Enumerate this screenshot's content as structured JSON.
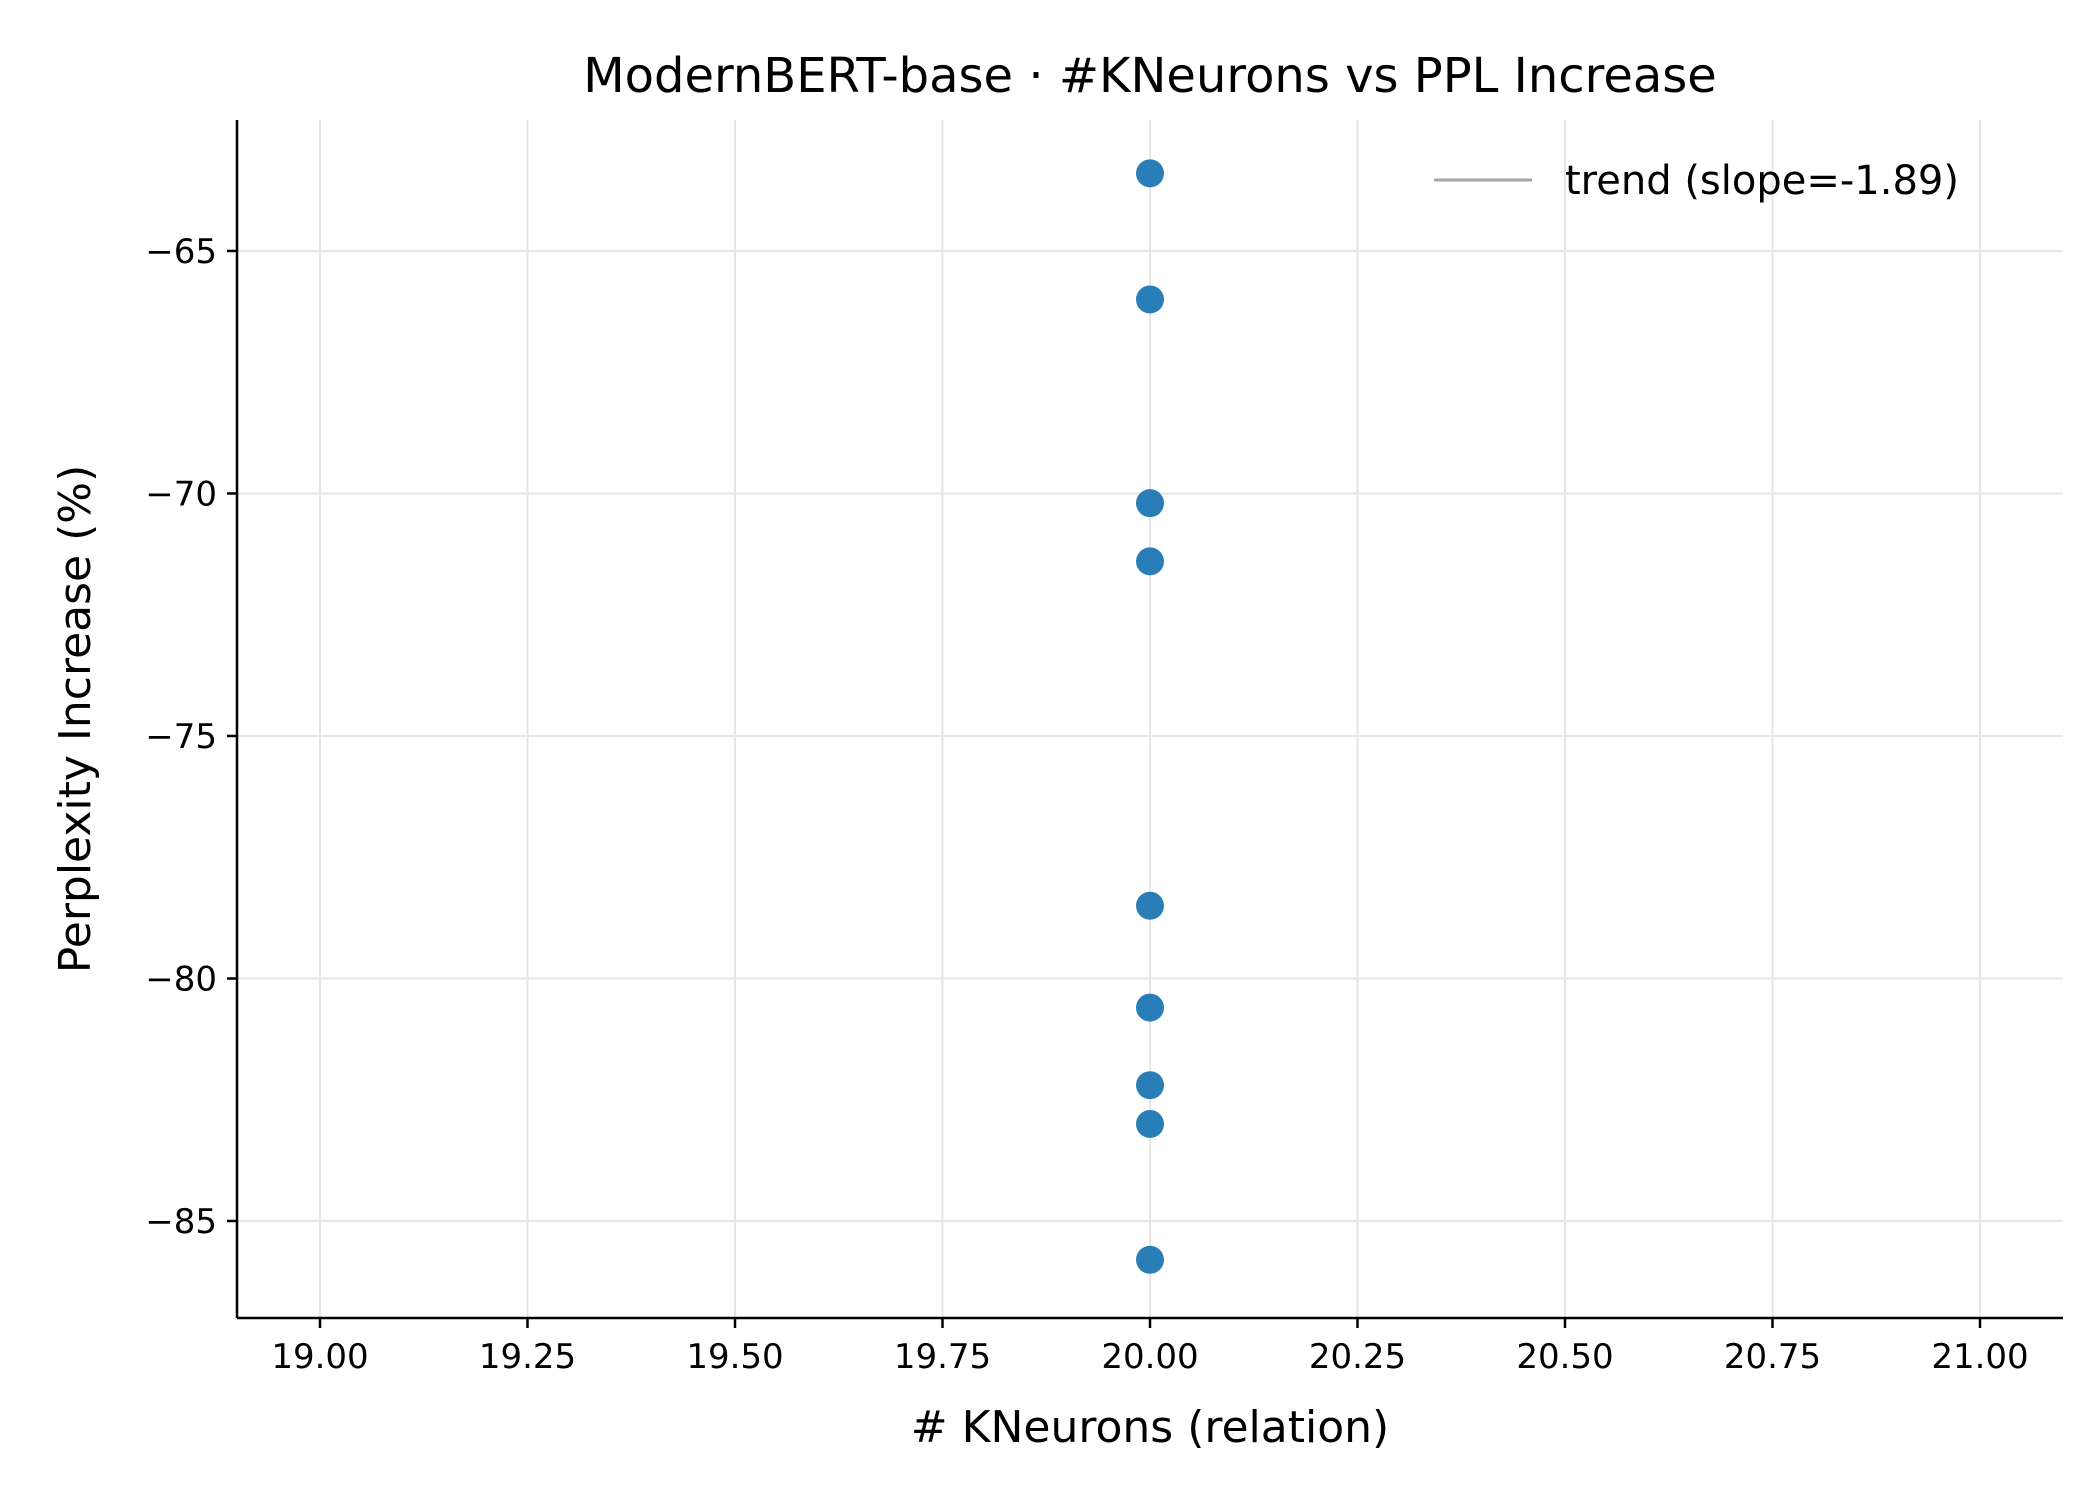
{
  "chart_data": {
    "type": "scatter",
    "title": "ModernBERT-base · #KNeurons vs PPL Increase",
    "xlabel": "# KNeurons (relation)",
    "ylabel": "Perplexity Increase (%)",
    "xlim": [
      18.9,
      21.1
    ],
    "ylim": [
      -87.0,
      -62.3
    ],
    "xticks": [
      19.0,
      19.25,
      19.5,
      19.75,
      20.0,
      20.25,
      20.5,
      20.75,
      21.0
    ],
    "xtick_labels": [
      "19.00",
      "19.25",
      "19.50",
      "19.75",
      "20.00",
      "20.25",
      "20.50",
      "20.75",
      "21.00"
    ],
    "yticks": [
      -65,
      -70,
      -75,
      -80,
      -85
    ],
    "ytick_labels": [
      "−65",
      "−70",
      "−75",
      "−80",
      "−85"
    ],
    "grid": true,
    "legend_position": "top-right",
    "series": [
      {
        "color": "#1f77b4",
        "points": [
          {
            "x": 20,
            "y": -63.4
          },
          {
            "x": 20,
            "y": -66.0
          },
          {
            "x": 20,
            "y": -70.2
          },
          {
            "x": 20,
            "y": -71.4
          },
          {
            "x": 20,
            "y": -78.5
          },
          {
            "x": 20,
            "y": -80.6
          },
          {
            "x": 20,
            "y": -82.2
          },
          {
            "x": 20,
            "y": -83.0
          },
          {
            "x": 20,
            "y": -85.8
          }
        ]
      }
    ],
    "trend": {
      "label": "trend (slope=-1.89)",
      "slope": -1.89,
      "color": "#a6a6a6"
    }
  }
}
